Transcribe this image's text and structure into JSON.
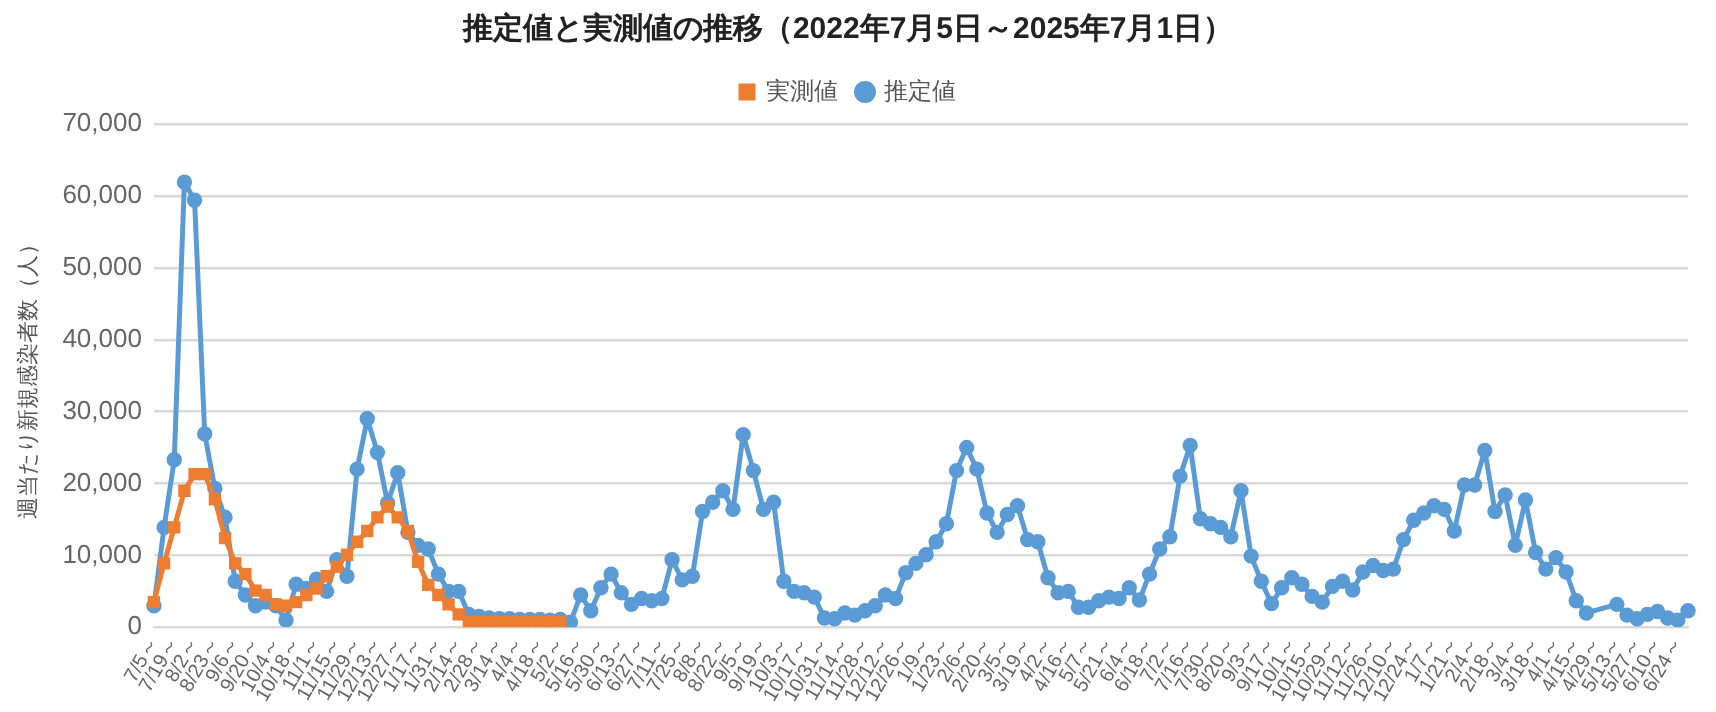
{
  "chart_data": {
    "type": "line",
    "title": "推定値と実測値の推移（2022年7月5日～2025年7月1日）",
    "ylabel": "週当たり新規感染者数（人）",
    "categories": [
      "7/5～",
      null,
      "7/19～",
      null,
      "8/2～",
      null,
      "8/23～",
      null,
      "9/6～",
      null,
      "9/20～",
      null,
      "10/4～",
      null,
      "10/18～",
      null,
      "11/1～",
      null,
      "11/15～",
      null,
      "11/29～",
      null,
      "12/13～",
      null,
      "12/27～",
      null,
      "1/17～",
      null,
      "1/31～",
      null,
      "2/14～",
      null,
      "2/28～",
      null,
      "3/14～",
      null,
      "4/4～",
      null,
      "4/18～",
      null,
      "5/2～",
      null,
      "5/16～",
      null,
      "5/30～",
      null,
      "6/13～",
      null,
      "6/27～",
      null,
      "7/11～",
      null,
      "7/25～",
      null,
      "8/8～",
      null,
      "8/22～",
      null,
      "9/5～",
      null,
      "9/19～",
      null,
      "10/3～",
      null,
      "10/17～",
      null,
      "10/31～",
      null,
      "11/14～",
      null,
      "11/28～",
      null,
      "12/12～",
      null,
      "12/26～",
      null,
      "1/9～",
      null,
      "1/23～",
      null,
      "2/6～",
      null,
      "2/20～",
      null,
      "3/5～",
      null,
      "3/19～",
      null,
      "4/2～",
      null,
      "4/16～",
      null,
      "5/7～",
      null,
      "5/21～",
      null,
      "6/4～",
      null,
      "6/18～",
      null,
      "7/2～",
      null,
      "7/16～",
      null,
      "7/30～",
      null,
      "8/20～",
      null,
      "9/3～",
      null,
      "9/17～",
      null,
      "10/1～",
      null,
      "10/15～",
      null,
      "10/29～",
      null,
      "11/12～",
      null,
      "11/26～",
      null,
      "12/10～",
      null,
      "12/24～",
      null,
      "1/7～",
      null,
      "1/21～",
      null,
      "2/4～",
      null,
      "2/18～",
      null,
      "3/4～",
      null,
      "3/18～",
      null,
      "4/1～",
      null,
      "4/15～",
      null,
      "4/29～",
      null,
      "5/13～",
      null,
      "5/27～",
      null,
      "6/10～",
      null,
      "6/24～",
      null
    ],
    "series": [
      {
        "name": "推定値",
        "color": "#5b9bd5",
        "marker": "circle",
        "values": [
          3000,
          13900,
          23300,
          61900,
          59400,
          26900,
          19300,
          15300,
          6400,
          4500,
          3000,
          3500,
          3000,
          1000,
          6000,
          5400,
          6700,
          5000,
          9400,
          7100,
          22000,
          29000,
          24300,
          17300,
          21500,
          13200,
          11400,
          10900,
          7400,
          5000,
          5000,
          1800,
          1500,
          1300,
          1200,
          1200,
          1100,
          1100,
          1100,
          1000,
          1100,
          700,
          4500,
          2300,
          5500,
          7400,
          4800,
          3200,
          4000,
          3700,
          4000,
          9400,
          6600,
          7100,
          16100,
          17400,
          19000,
          16400,
          26800,
          21800,
          16400,
          17400,
          6400,
          5000,
          4800,
          4200,
          1300,
          1200,
          2000,
          1700,
          2300,
          3000,
          4500,
          4000,
          7600,
          8900,
          10100,
          11900,
          14400,
          21800,
          25000,
          22000,
          15900,
          13200,
          15700,
          16900,
          12200,
          11900,
          6900,
          4800,
          5000,
          2800,
          2800,
          3700,
          4200,
          4000,
          5500,
          3800,
          7400,
          10900,
          12600,
          21000,
          25300,
          15100,
          14400,
          13900,
          12600,
          19000,
          9900,
          6400,
          3300,
          5500,
          6900,
          6000,
          4300,
          3500,
          5700,
          6400,
          5200,
          7700,
          8600,
          7900,
          8100,
          12200,
          14900,
          15900,
          16900,
          16400,
          13400,
          19800,
          19800,
          24600,
          16100,
          18400,
          11400,
          17700,
          10400,
          8100,
          9700,
          7700,
          3700,
          2000,
          null,
          null,
          3200,
          1700,
          1200,
          1800,
          2200,
          1300,
          1000,
          2300
        ]
      },
      {
        "name": "実測値",
        "color": "#ed7d31",
        "marker": "square",
        "values": [
          3500,
          8900,
          13900,
          19000,
          21300,
          21300,
          17800,
          12400,
          8900,
          7400,
          5100,
          4500,
          3200,
          3000,
          3500,
          4500,
          5400,
          7100,
          8400,
          10100,
          11900,
          13400,
          15300,
          16800,
          15300,
          13400,
          9100,
          5900,
          4500,
          3200,
          1800,
          800,
          800,
          800,
          800,
          800,
          800,
          800,
          800,
          800,
          800,
          null,
          null,
          null,
          null,
          null,
          null,
          null,
          null,
          null,
          null,
          null,
          null,
          null,
          null,
          null,
          null,
          null,
          null,
          null,
          null,
          null,
          null,
          null,
          null,
          null,
          null,
          null,
          null,
          null,
          null,
          null,
          null,
          null,
          null,
          null,
          null,
          null,
          null,
          null,
          null,
          null,
          null,
          null,
          null,
          null,
          null,
          null,
          null,
          null,
          null,
          null,
          null,
          null,
          null,
          null,
          null,
          null,
          null,
          null,
          null,
          null,
          null,
          null,
          null,
          null,
          null,
          null,
          null,
          null,
          null,
          null,
          null,
          null,
          null,
          null,
          null,
          null,
          null,
          null,
          null,
          null,
          null,
          null,
          null,
          null,
          null,
          null,
          null,
          null,
          null,
          null,
          null,
          null,
          null,
          null,
          null,
          null,
          null,
          null,
          null,
          null,
          null,
          null,
          null,
          null,
          null,
          null,
          null,
          null,
          null,
          null
        ]
      }
    ],
    "ylim": [
      0,
      70000
    ],
    "yticks": [
      0,
      {
        "value": 10000,
        "label": "10,000"
      },
      {
        "value": 20000,
        "label": "20,000"
      },
      {
        "value": 30000,
        "label": "30,000"
      },
      {
        "value": 40000,
        "label": "40,000"
      },
      {
        "value": 50000,
        "label": "50,000"
      },
      {
        "value": 60000,
        "label": "60,000"
      },
      {
        "value": 70000,
        "label": "70,000"
      }
    ],
    "grid": "y",
    "legend": "top",
    "line_style": "solid"
  }
}
